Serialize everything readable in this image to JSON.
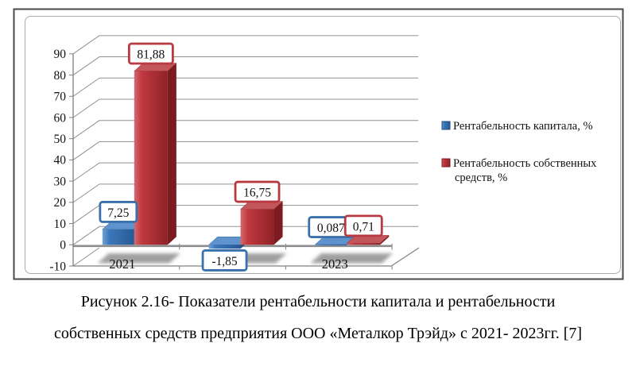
{
  "figure": {
    "caption_line1": "Рисунок 2.16- Показатели рентабельности капитала и рентабельности",
    "caption_line2": "собственных средств предприятия ООО «Металкор Трэйд» с 2021- 2023гг. [7]"
  },
  "chart_data": {
    "type": "bar",
    "style": "3d-clustered-column",
    "title": "",
    "xlabel": "",
    "ylabel": "",
    "categories": [
      "2021",
      "2022",
      "2023"
    ],
    "series": [
      {
        "name": "Рентабельность капитала, %",
        "slug": "rentabelnost-kapitala",
        "values": [
          7.25,
          -1.85,
          0.087
        ],
        "point_labels": [
          "7,25",
          "-1,85",
          "0,087"
        ],
        "colors": {
          "front": "#3b77ba",
          "front_light": "#6ea3d9",
          "front_dark": "#275a96",
          "top": "#5e93cd",
          "side": "#1e4d80",
          "label_border": "#3a70ab"
        }
      },
      {
        "name": "Рентабельность собственных средств, %",
        "slug": "rentabelnost-sobstvennyh-sredstv",
        "values": [
          81.88,
          16.75,
          0.71
        ],
        "point_labels": [
          "81,88",
          "16,75",
          "0,71"
        ],
        "colors": {
          "front": "#c0393f",
          "front_light": "#d36a6d",
          "front_dark": "#8e2227",
          "top": "#c2565b",
          "side": "#7c1b20",
          "label_border": "#b8393f"
        }
      }
    ],
    "ylim": [
      -10,
      90
    ],
    "yticks": [
      -10,
      0,
      10,
      20,
      30,
      40,
      50,
      60,
      70,
      80,
      90
    ],
    "grid": true,
    "legend_position": "right",
    "legend": {
      "entries": [
        {
          "lines": [
            "Рентабельность капитала, %"
          ]
        },
        {
          "lines": [
            "Рентабельность собственных",
            "средств, %"
          ]
        }
      ]
    }
  },
  "colors": {
    "outer_border": "#4a4a4a",
    "inner_border": "#ababab",
    "gridline": "#909090",
    "axis": "#808080",
    "floor_line": "#8c8c8c",
    "shadow": "#a0a0a0",
    "tick_text": "#1a1a1a",
    "label_text": "#14141f",
    "background": "#ffffff"
  }
}
